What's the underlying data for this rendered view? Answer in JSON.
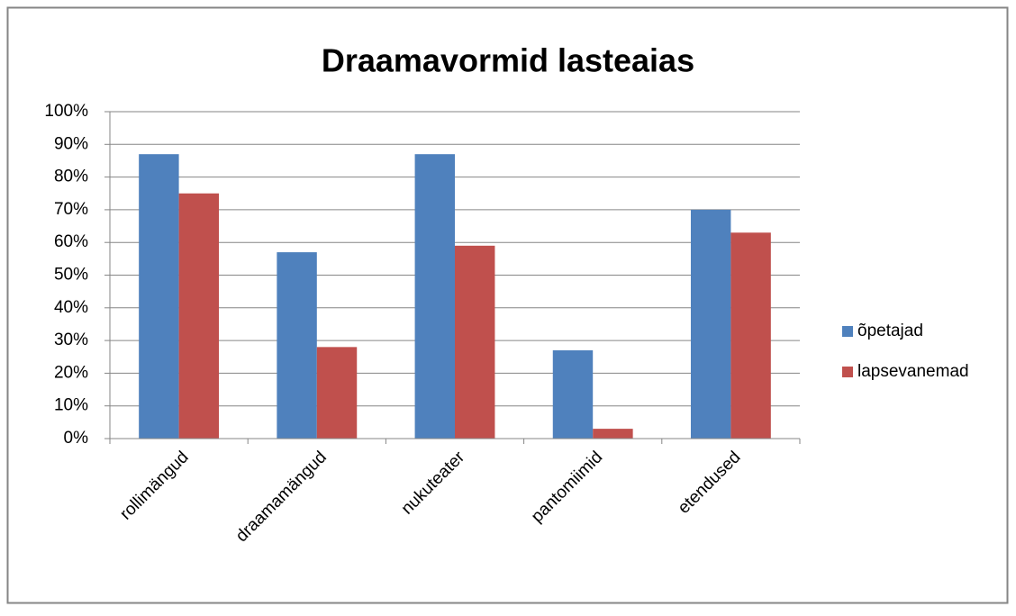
{
  "chart_data": {
    "type": "bar",
    "title": "Draamavormid lasteaias",
    "categories": [
      "rollimängud",
      "draamamängud",
      "nukuteater",
      "pantomiimid",
      "etendused"
    ],
    "series": [
      {
        "name": "õpetajad",
        "color": "#4f81bd",
        "values": [
          87,
          57,
          87,
          27,
          70
        ]
      },
      {
        "name": "lapsevanemad",
        "color": "#c0504d",
        "values": [
          75,
          28,
          59,
          3,
          63
        ]
      }
    ],
    "ylim": [
      0,
      100
    ],
    "yticks": [
      {
        "value": 0,
        "label": "0%"
      },
      {
        "value": 10,
        "label": "10%"
      },
      {
        "value": 20,
        "label": "20%"
      },
      {
        "value": 30,
        "label": "30%"
      },
      {
        "value": 40,
        "label": "40%"
      },
      {
        "value": 50,
        "label": "50%"
      },
      {
        "value": 60,
        "label": "60%"
      },
      {
        "value": 70,
        "label": "70%"
      },
      {
        "value": 80,
        "label": "80%"
      },
      {
        "value": 90,
        "label": "90%"
      },
      {
        "value": 100,
        "label": "100%"
      }
    ],
    "grid": true,
    "legend": "right"
  }
}
